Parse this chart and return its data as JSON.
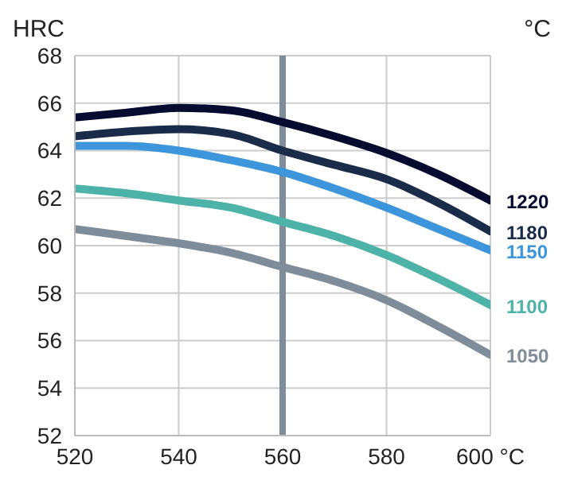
{
  "chart_data": {
    "type": "line",
    "ylabel": "HRC",
    "annotations": [
      "°C"
    ],
    "x": [
      520,
      530,
      540,
      550,
      560,
      570,
      580,
      590,
      600
    ],
    "series": [
      {
        "name": "1220",
        "color": "#060b30",
        "values": [
          65.4,
          65.6,
          65.8,
          65.7,
          65.2,
          64.6,
          63.9,
          63.0,
          61.9
        ]
      },
      {
        "name": "1180",
        "color": "#1b2c4a",
        "values": [
          64.6,
          64.8,
          64.9,
          64.7,
          64.0,
          63.4,
          62.8,
          61.8,
          60.6
        ]
      },
      {
        "name": "1150",
        "color": "#3d95db",
        "values": [
          64.2,
          64.2,
          64.0,
          63.6,
          63.1,
          62.4,
          61.6,
          60.7,
          59.8
        ]
      },
      {
        "name": "1100",
        "color": "#4db3a8",
        "values": [
          62.4,
          62.2,
          61.9,
          61.6,
          61.0,
          60.4,
          59.6,
          58.6,
          57.5
        ]
      },
      {
        "name": "1050",
        "color": "#7f8d9a",
        "values": [
          60.7,
          60.4,
          60.1,
          59.7,
          59.1,
          58.5,
          57.7,
          56.6,
          55.4
        ]
      }
    ],
    "xlim": [
      520,
      600
    ],
    "xticks": [
      520,
      540,
      560,
      {
        "value": 580,
        "label": "580"
      },
      {
        "value": 600,
        "label": "600 °C"
      }
    ],
    "ylim": [
      52,
      68
    ],
    "yticks": [
      52,
      54,
      56,
      58,
      60,
      62,
      64,
      66,
      68
    ],
    "ref_lines": [
      {
        "axis": "x",
        "value": 560,
        "color": "#7f8d9a"
      }
    ],
    "grid": true,
    "marker": "none",
    "line_style": "solid"
  }
}
